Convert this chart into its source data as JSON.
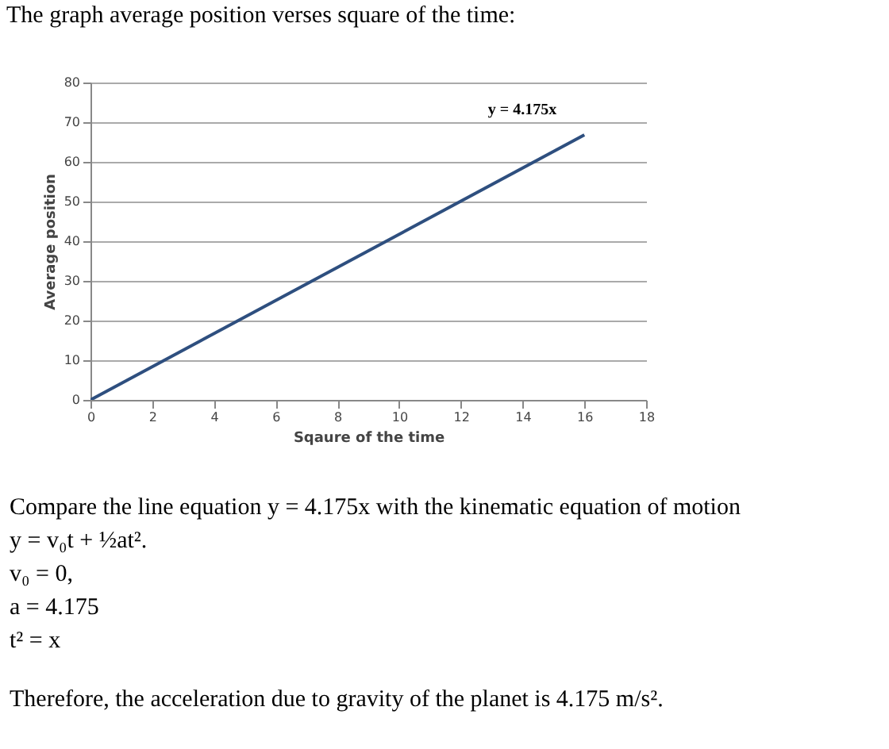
{
  "chart_data": {
    "type": "line",
    "title": "The graph average position verses square of the time:",
    "xlabel": "Sqaure of the time",
    "ylabel": "Average position",
    "x": [
      0,
      16
    ],
    "series": [
      {
        "color": "#2e4f7f",
        "values": [
          0,
          66.8
        ]
      }
    ],
    "xlim": [
      0,
      18
    ],
    "xticks": [
      0,
      2,
      4,
      6,
      8,
      10,
      12,
      14,
      16,
      18
    ],
    "ylim": [
      0,
      80
    ],
    "yticks": [
      0,
      10,
      20,
      30,
      40,
      50,
      60,
      70,
      80
    ],
    "grid": "y",
    "marker": "none",
    "line_style": "solid",
    "annotations": [
      "y = 4.175x",
      "Compare the line equation y = 4.175x with the kinematic equation of motion",
      "y = v₀t + ½at².",
      "v₀ = 0,",
      "a = 4.175",
      "t² = x",
      "Therefore, the acceleration due to gravity of the planet is 4.175 m/s²."
    ]
  }
}
